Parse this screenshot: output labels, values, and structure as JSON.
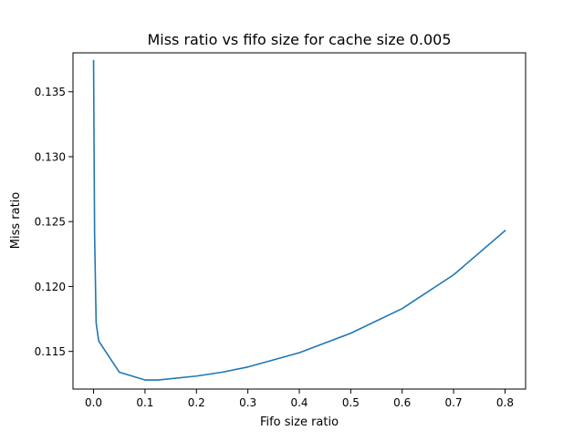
{
  "chart_data": {
    "type": "line",
    "title": "Miss ratio vs fifo size for cache size 0.005",
    "xlabel": "Fifo size ratio",
    "ylabel": "Miss ratio",
    "xlim": [
      -0.04,
      0.84
    ],
    "ylim": [
      0.1121,
      0.138
    ],
    "xticks": [
      0.0,
      0.1,
      0.2,
      0.3,
      0.4,
      0.5,
      0.6,
      0.7,
      0.8
    ],
    "xtick_labels": [
      "0.0",
      "0.1",
      "0.2",
      "0.3",
      "0.4",
      "0.5",
      "0.6",
      "0.7",
      "0.8"
    ],
    "yticks": [
      0.115,
      0.12,
      0.125,
      0.13,
      0.135
    ],
    "ytick_labels": [
      "0.115",
      "0.120",
      "0.125",
      "0.130",
      "0.135"
    ],
    "grid": false,
    "series": [
      {
        "color": "#1f77b4",
        "x": [
          0.0,
          0.001,
          0.002,
          0.005,
          0.01,
          0.05,
          0.1,
          0.125,
          0.2,
          0.25,
          0.3,
          0.4,
          0.5,
          0.6,
          0.7,
          0.8
        ],
        "y": [
          0.1374,
          0.1305,
          0.124,
          0.1172,
          0.1158,
          0.1134,
          0.1128,
          0.1128,
          0.1131,
          0.1134,
          0.1138,
          0.1149,
          0.1164,
          0.1183,
          0.1209,
          0.1243
        ]
      }
    ]
  }
}
